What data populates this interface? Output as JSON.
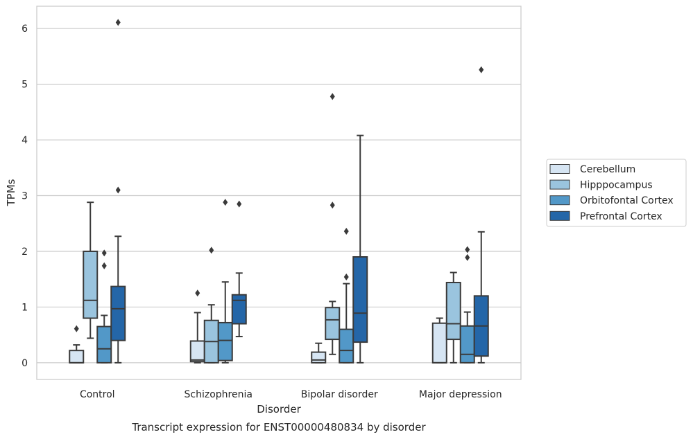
{
  "chart_data": {
    "type": "box",
    "title": "",
    "caption": "Transcript expression for ENST00000480834 by disorder",
    "xlabel": "Disorder",
    "ylabel": "TPMs",
    "ylim": [
      -0.3,
      6.4
    ],
    "yticks": [
      0,
      1,
      2,
      3,
      4,
      5,
      6
    ],
    "grid": "horizontal",
    "legend_position": "right",
    "categories": [
      "Control",
      "Schizophrenia",
      "Bipolar disorder",
      "Major depression"
    ],
    "series": [
      {
        "name": "Cerebellum",
        "color": "#d6e5f3",
        "boxes": [
          {
            "whisker_low": 0,
            "q1": 0,
            "median": 0,
            "q3": 0.22,
            "whisker_high": 0.32,
            "outliers": [
              0.61
            ]
          },
          {
            "whisker_low": 0,
            "q1": 0.02,
            "median": 0.05,
            "q3": 0.39,
            "whisker_high": 0.9,
            "outliers": [
              1.25
            ]
          },
          {
            "whisker_low": 0,
            "q1": 0,
            "median": 0.05,
            "q3": 0.19,
            "whisker_high": 0.35,
            "outliers": []
          },
          {
            "whisker_low": 0,
            "q1": 0,
            "median": 0,
            "q3": 0.71,
            "whisker_high": 0.8,
            "outliers": []
          }
        ]
      },
      {
        "name": "Hipppocampus",
        "color": "#9ac4de",
        "boxes": [
          {
            "whisker_low": 0.44,
            "q1": 0.8,
            "median": 1.12,
            "q3": 2.0,
            "whisker_high": 2.88,
            "outliers": []
          },
          {
            "whisker_low": 0,
            "q1": 0,
            "median": 0.38,
            "q3": 0.76,
            "whisker_high": 1.04,
            "outliers": [
              2.02
            ]
          },
          {
            "whisker_low": 0.15,
            "q1": 0.42,
            "median": 0.77,
            "q3": 0.99,
            "whisker_high": 1.1,
            "outliers": [
              2.83,
              4.78
            ]
          },
          {
            "whisker_low": 0,
            "q1": 0.42,
            "median": 0.7,
            "q3": 1.44,
            "whisker_high": 1.62,
            "outliers": []
          }
        ]
      },
      {
        "name": "Orbitofontal Cortex",
        "color": "#5298c8",
        "boxes": [
          {
            "whisker_low": 0,
            "q1": 0,
            "median": 0.25,
            "q3": 0.65,
            "whisker_high": 0.85,
            "outliers": [
              1.74,
              1.97
            ]
          },
          {
            "whisker_low": 0,
            "q1": 0.04,
            "median": 0.4,
            "q3": 0.72,
            "whisker_high": 1.45,
            "outliers": [
              2.88
            ]
          },
          {
            "whisker_low": 0,
            "q1": 0,
            "median": 0.22,
            "q3": 0.6,
            "whisker_high": 1.42,
            "outliers": [
              1.54,
              2.36
            ]
          },
          {
            "whisker_low": 0,
            "q1": 0,
            "median": 0.15,
            "q3": 0.66,
            "whisker_high": 0.91,
            "outliers": [
              1.89,
              2.03
            ]
          }
        ]
      },
      {
        "name": "Prefrontal Cortex",
        "color": "#2466a8",
        "boxes": [
          {
            "whisker_low": 0,
            "q1": 0.4,
            "median": 0.97,
            "q3": 1.37,
            "whisker_high": 2.27,
            "outliers": [
              3.1,
              6.11
            ]
          },
          {
            "whisker_low": 0.47,
            "q1": 0.7,
            "median": 1.12,
            "q3": 1.22,
            "whisker_high": 1.61,
            "outliers": [
              2.85
            ]
          },
          {
            "whisker_low": 0,
            "q1": 0.37,
            "median": 0.89,
            "q3": 1.9,
            "whisker_high": 4.08,
            "outliers": []
          },
          {
            "whisker_low": 0,
            "q1": 0.12,
            "median": 0.66,
            "q3": 1.2,
            "whisker_high": 2.35,
            "outliers": [
              5.26
            ]
          }
        ]
      }
    ]
  }
}
